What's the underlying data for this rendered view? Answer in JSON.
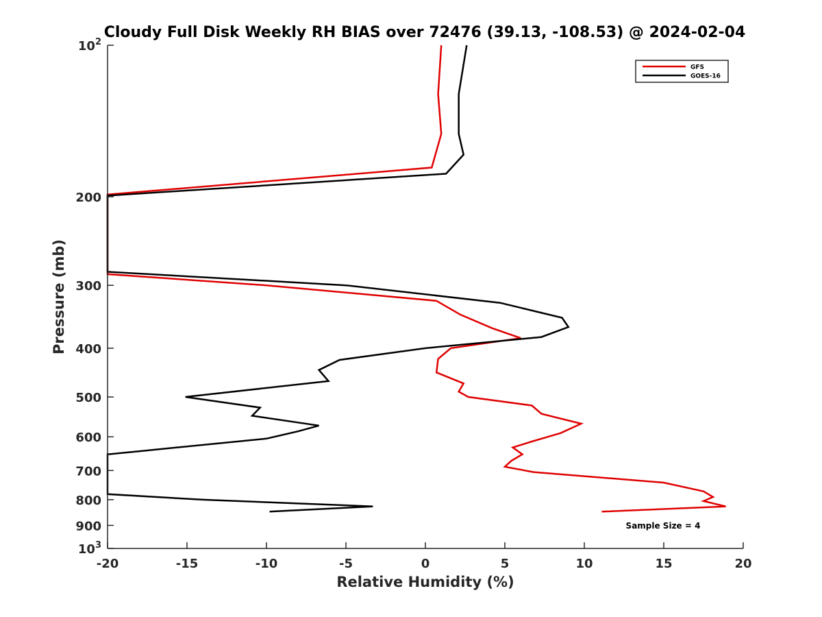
{
  "chart_data": {
    "type": "line",
    "title": "Cloudy Full Disk Weekly RH BIAS over 72476 (39.13, -108.53) @ 2024-02-04",
    "xlabel": "Relative Humidity (%)",
    "ylabel": "Pressure (mb)",
    "xlim": [
      -20,
      20
    ],
    "ylim": [
      1000,
      100
    ],
    "yscale": "log",
    "y_reversed": true,
    "grid": false,
    "legend_position": "top-right",
    "x_ticks": [
      -20,
      -15,
      -10,
      -5,
      0,
      5,
      10,
      15,
      20
    ],
    "x_tick_labels": [
      "-20",
      "-15",
      "-10",
      "-5",
      "0",
      "5",
      "10",
      "15",
      "20"
    ],
    "y_ticks": [
      100,
      200,
      300,
      400,
      500,
      600,
      700,
      800,
      900,
      1000
    ],
    "y_tick_labels": [
      {
        "value": 100,
        "base": "10",
        "exp": "2"
      },
      {
        "value": 200,
        "base": "200",
        "exp": ""
      },
      {
        "value": 300,
        "base": "300",
        "exp": ""
      },
      {
        "value": 400,
        "base": "400",
        "exp": ""
      },
      {
        "value": 500,
        "base": "500",
        "exp": ""
      },
      {
        "value": 600,
        "base": "600",
        "exp": ""
      },
      {
        "value": 700,
        "base": "700",
        "exp": ""
      },
      {
        "value": 800,
        "base": "800",
        "exp": ""
      },
      {
        "value": 900,
        "base": "900",
        "exp": ""
      },
      {
        "value": 1000,
        "base": "10",
        "exp": "3"
      }
    ],
    "series": [
      {
        "name": "GFS",
        "color": "#e00000",
        "points": [
          [
            1.0,
            100
          ],
          [
            0.8,
            125
          ],
          [
            1.0,
            150
          ],
          [
            0.4,
            175
          ],
          [
            -20.0,
            198
          ],
          [
            -20.0,
            285
          ],
          [
            -10.0,
            300
          ],
          [
            0.7,
            322
          ],
          [
            2.2,
            343
          ],
          [
            4.2,
            365
          ],
          [
            6.0,
            382
          ],
          [
            1.6,
            400
          ],
          [
            0.8,
            420
          ],
          [
            0.7,
            447
          ],
          [
            2.4,
            470
          ],
          [
            2.1,
            488
          ],
          [
            2.7,
            500
          ],
          [
            6.7,
            520
          ],
          [
            7.3,
            540
          ],
          [
            9.8,
            565
          ],
          [
            8.5,
            590
          ],
          [
            6.7,
            613
          ],
          [
            5.5,
            630
          ],
          [
            6.1,
            650
          ],
          [
            5.4,
            670
          ],
          [
            5.0,
            688
          ],
          [
            6.8,
            705
          ],
          [
            15.0,
            740
          ],
          [
            17.5,
            770
          ],
          [
            18.1,
            790
          ],
          [
            17.5,
            805
          ],
          [
            18.9,
            825
          ],
          [
            11.1,
            845
          ]
        ]
      },
      {
        "name": "GOES-16",
        "color": "#000000",
        "points": [
          [
            2.6,
            100
          ],
          [
            2.1,
            125
          ],
          [
            2.1,
            150
          ],
          [
            2.4,
            165
          ],
          [
            1.3,
            180
          ],
          [
            -20.0,
            199
          ],
          [
            -20.0,
            282
          ],
          [
            -5.0,
            300
          ],
          [
            4.7,
            325
          ],
          [
            8.6,
            348
          ],
          [
            9.0,
            363
          ],
          [
            7.3,
            380
          ],
          [
            0.0,
            400
          ],
          [
            -5.4,
            422
          ],
          [
            -6.7,
            442
          ],
          [
            -6.1,
            465
          ],
          [
            -15.1,
            500
          ],
          [
            -10.4,
            525
          ],
          [
            -10.9,
            545
          ],
          [
            -6.7,
            570
          ],
          [
            -8.0,
            585
          ],
          [
            -10.0,
            605
          ],
          [
            -17.8,
            640
          ],
          [
            -20.0,
            650
          ],
          [
            -20.0,
            780
          ],
          [
            -14.0,
            800
          ],
          [
            -3.3,
            825
          ],
          [
            -9.8,
            845
          ]
        ]
      }
    ],
    "annotation": "Sample Size = 4"
  }
}
